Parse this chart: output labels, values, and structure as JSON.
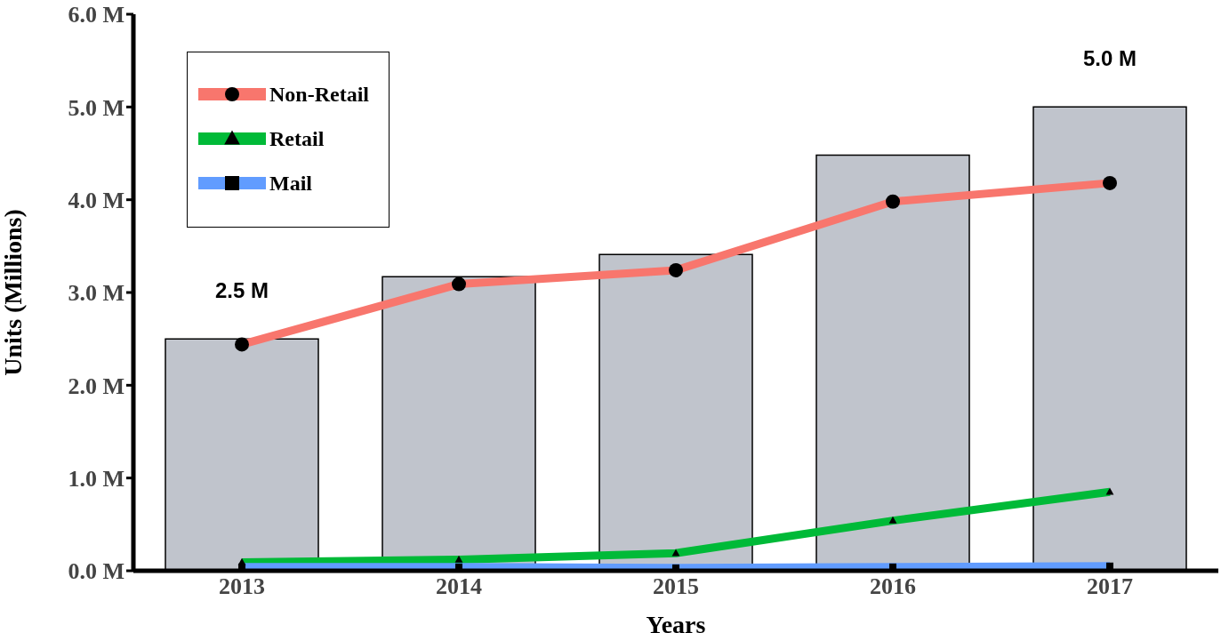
{
  "chart_data": {
    "type": "bar",
    "xlabel": "Years",
    "ylabel": "Units (Millions)",
    "categories": [
      "2013",
      "2014",
      "2015",
      "2016",
      "2017"
    ],
    "ylim": [
      0,
      6
    ],
    "yticks": [
      {
        "value": 0,
        "label": "0.0 M"
      },
      {
        "value": 1,
        "label": "1.0 M"
      },
      {
        "value": 2,
        "label": "2.0 M"
      },
      {
        "value": 3,
        "label": "3.0 M"
      },
      {
        "value": 4,
        "label": "4.0 M"
      },
      {
        "value": 5,
        "label": "5.0 M"
      },
      {
        "value": 6,
        "label": "6.0 M"
      }
    ],
    "grid": false,
    "legend": "top left",
    "series": [
      {
        "color": "#c0c4cc",
        "values": [
          2.5,
          3.17,
          3.41,
          4.48,
          5.0
        ],
        "value_labels": [
          "2.5 M",
          null,
          null,
          null,
          "5.0 M"
        ]
      },
      {
        "type": "line",
        "name": "Non-Retail",
        "color": "#f8766d",
        "marker": "circle",
        "values": [
          2.44,
          3.09,
          3.24,
          3.98,
          4.18
        ]
      },
      {
        "type": "line",
        "name": "Retail",
        "color": "#00ba38",
        "marker": "triangle",
        "values": [
          0.09,
          0.12,
          0.19,
          0.54,
          0.85
        ]
      },
      {
        "type": "line",
        "name": "Mail",
        "color": "#619cff",
        "marker": "square",
        "values": [
          0.04,
          0.04,
          0.03,
          0.04,
          0.05
        ]
      }
    ]
  }
}
